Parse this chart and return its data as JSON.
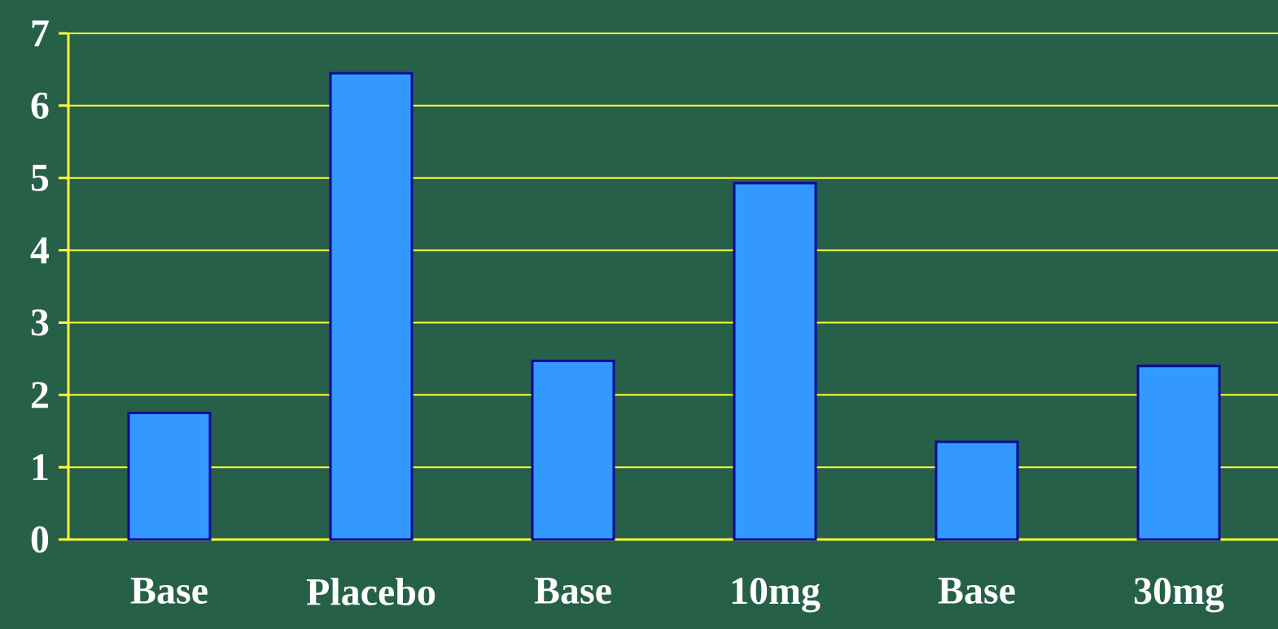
{
  "chart_data": {
    "type": "bar",
    "categories": [
      "Base",
      "Placebo",
      "Base",
      "10mg",
      "Base",
      "30mg"
    ],
    "values": [
      1.75,
      6.45,
      2.47,
      4.93,
      1.35,
      2.4
    ],
    "color": "#3399ff",
    "ylim": [
      0,
      7
    ],
    "yticks": [
      0,
      1,
      2,
      3,
      4,
      5,
      6,
      7
    ],
    "grid": "y"
  }
}
